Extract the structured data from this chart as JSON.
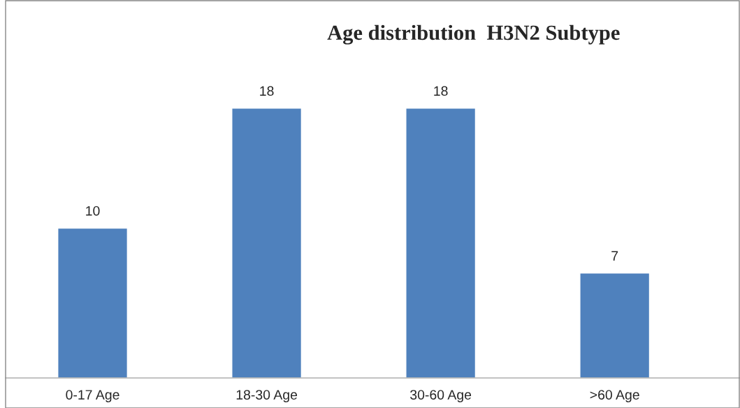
{
  "chart_data": {
    "type": "bar",
    "title": "Age distribution  H3N2 Subtype",
    "categories": [
      "0-17 Age",
      "18-30 Age",
      "30-60 Age",
      ">60 Age"
    ],
    "values": [
      10,
      18,
      18,
      7
    ],
    "color": "#4f81bd",
    "data_labels": true,
    "grid": false,
    "legend": false
  }
}
